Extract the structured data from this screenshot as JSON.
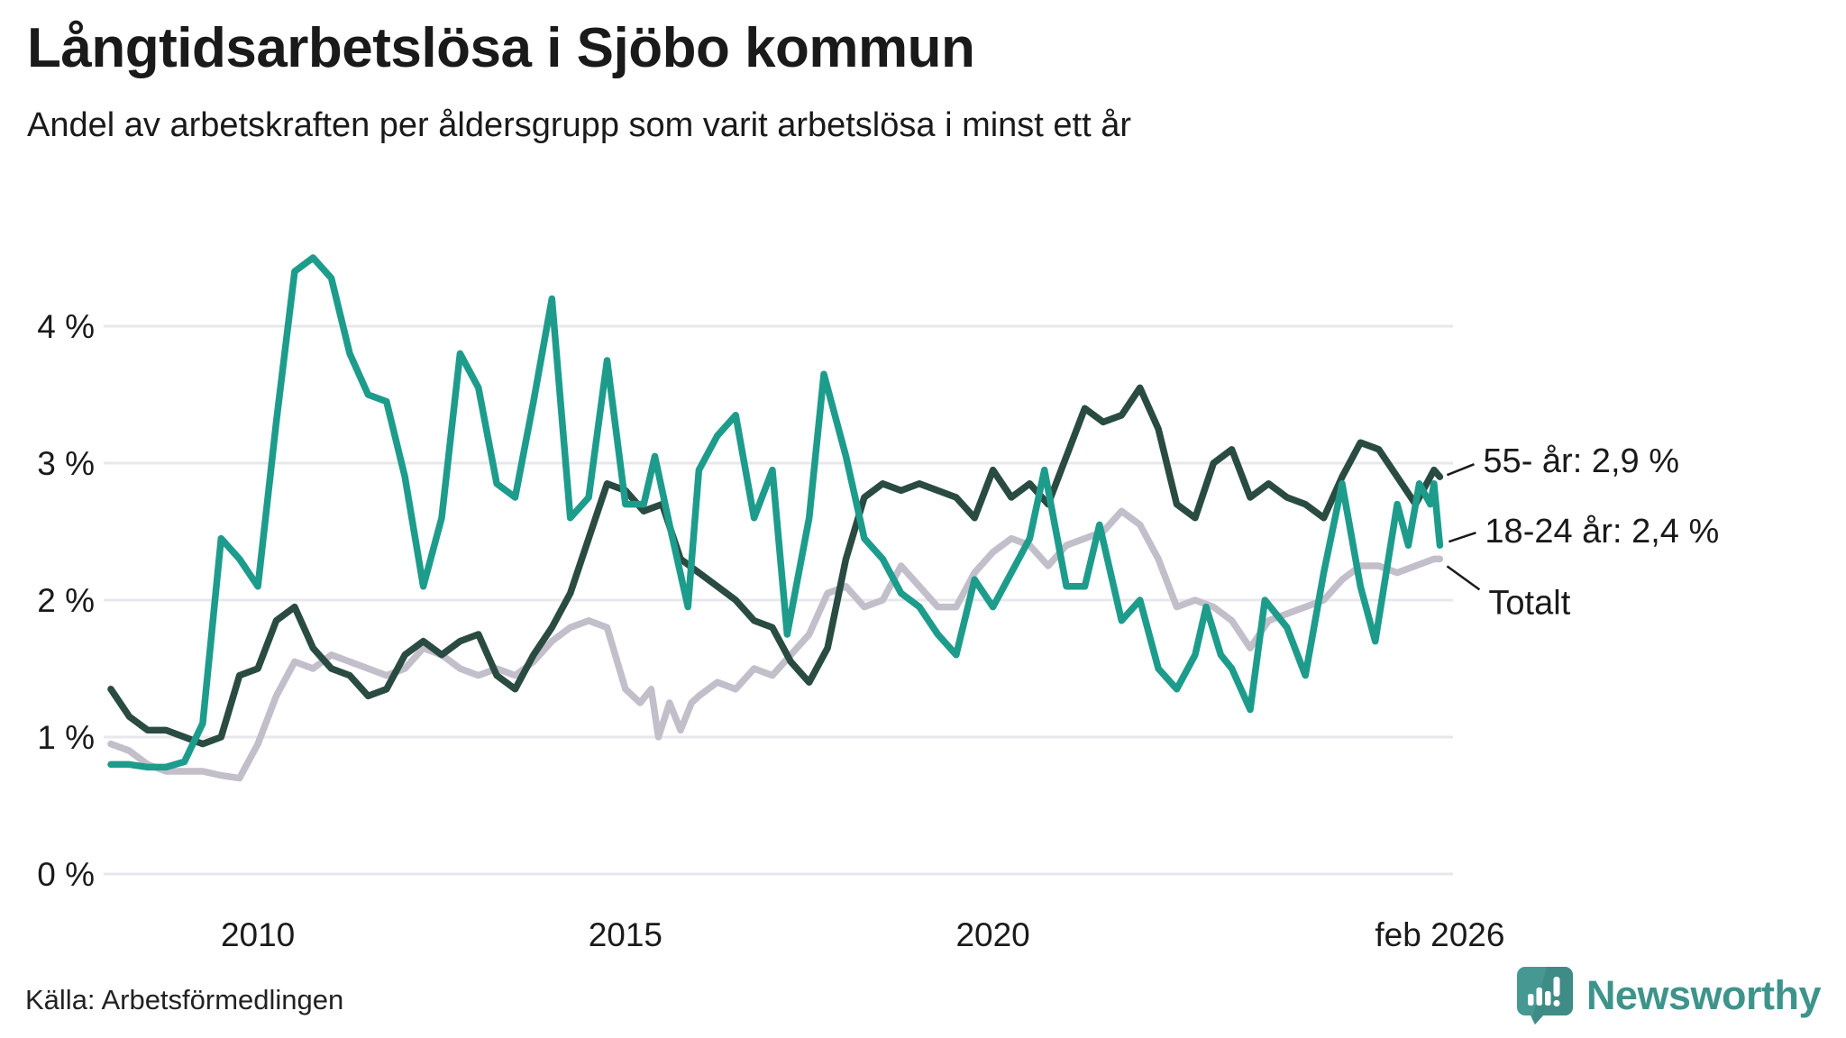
{
  "header": {
    "title": "Långtidsarbetslösa i Sjöbo kommun",
    "subtitle": "Andel av arbetskraften per åldersgrupp som varit arbetslösa i minst ett år"
  },
  "footer": {
    "source": "Källa: Arbetsförmedlingen",
    "brand": "Newsworthy"
  },
  "colors": {
    "background": "#ffffff",
    "text": "#1a1a1a",
    "gridline": "#e8e7eb",
    "series_18_24": "#1d9c8c",
    "series_55": "#2a4b42",
    "series_total": "#c2bfca",
    "brand_teal": "#3e948b",
    "brand_icon": "#459992",
    "brand_icon_dark": "#2e7a72"
  },
  "chart_data": {
    "type": "line",
    "title": "Långtidsarbetslösa i Sjöbo kommun",
    "subtitle": "Andel av arbetskraften per åldersgrupp som varit arbetslösa i minst ett år",
    "unit": "%",
    "grid": "horizontal",
    "legend_position": "end-of-line-labels",
    "x_axis": {
      "range": [
        2008.0,
        2026.17
      ],
      "ticks": [
        {
          "t": 2010,
          "label": "2010"
        },
        {
          "t": 2015,
          "label": "2015"
        },
        {
          "t": 2020,
          "label": "2020"
        },
        {
          "t": 2026.08,
          "label": "feb 2026"
        }
      ]
    },
    "y_axis": {
      "range": [
        0,
        4.6
      ],
      "ticks": [
        {
          "v": 0,
          "label": "0 %"
        },
        {
          "v": 1,
          "label": "1 %"
        },
        {
          "v": 2,
          "label": "2 %"
        },
        {
          "v": 3,
          "label": "3 %"
        },
        {
          "v": 4,
          "label": "4 %"
        }
      ]
    },
    "annotations": [
      {
        "text": "55- år: 2,9 %",
        "series": "55- år"
      },
      {
        "text": "18-24 år: 2,4 %",
        "series": "18-24 år"
      },
      {
        "text": "Totalt",
        "series": "Totalt"
      }
    ],
    "series": [
      {
        "name": "Totalt",
        "color": "#c2bfca",
        "end_value": 2.3,
        "points": [
          [
            2008.0,
            0.95
          ],
          [
            2008.25,
            0.9
          ],
          [
            2008.5,
            0.8
          ],
          [
            2008.75,
            0.75
          ],
          [
            2009.0,
            0.75
          ],
          [
            2009.25,
            0.75
          ],
          [
            2009.5,
            0.72
          ],
          [
            2009.75,
            0.7
          ],
          [
            2010.0,
            0.95
          ],
          [
            2010.25,
            1.3
          ],
          [
            2010.5,
            1.55
          ],
          [
            2010.75,
            1.5
          ],
          [
            2011.0,
            1.6
          ],
          [
            2011.25,
            1.55
          ],
          [
            2011.5,
            1.5
          ],
          [
            2011.75,
            1.45
          ],
          [
            2012.0,
            1.5
          ],
          [
            2012.25,
            1.65
          ],
          [
            2012.5,
            1.6
          ],
          [
            2012.75,
            1.5
          ],
          [
            2013.0,
            1.45
          ],
          [
            2013.25,
            1.5
          ],
          [
            2013.5,
            1.45
          ],
          [
            2013.75,
            1.55
          ],
          [
            2014.0,
            1.7
          ],
          [
            2014.25,
            1.8
          ],
          [
            2014.5,
            1.85
          ],
          [
            2014.75,
            1.8
          ],
          [
            2015.0,
            1.35
          ],
          [
            2015.2,
            1.25
          ],
          [
            2015.35,
            1.35
          ],
          [
            2015.45,
            1.0
          ],
          [
            2015.6,
            1.25
          ],
          [
            2015.75,
            1.05
          ],
          [
            2015.9,
            1.25
          ],
          [
            2016.0,
            1.3
          ],
          [
            2016.25,
            1.4
          ],
          [
            2016.5,
            1.35
          ],
          [
            2016.75,
            1.5
          ],
          [
            2017.0,
            1.45
          ],
          [
            2017.25,
            1.6
          ],
          [
            2017.5,
            1.75
          ],
          [
            2017.75,
            2.05
          ],
          [
            2018.0,
            2.1
          ],
          [
            2018.25,
            1.95
          ],
          [
            2018.5,
            2.0
          ],
          [
            2018.75,
            2.25
          ],
          [
            2019.0,
            2.1
          ],
          [
            2019.25,
            1.95
          ],
          [
            2019.5,
            1.95
          ],
          [
            2019.75,
            2.2
          ],
          [
            2020.0,
            2.35
          ],
          [
            2020.25,
            2.45
          ],
          [
            2020.5,
            2.4
          ],
          [
            2020.75,
            2.25
          ],
          [
            2021.0,
            2.4
          ],
          [
            2021.25,
            2.45
          ],
          [
            2021.5,
            2.5
          ],
          [
            2021.75,
            2.65
          ],
          [
            2022.0,
            2.55
          ],
          [
            2022.25,
            2.3
          ],
          [
            2022.5,
            1.95
          ],
          [
            2022.75,
            2.0
          ],
          [
            2023.0,
            1.95
          ],
          [
            2023.25,
            1.85
          ],
          [
            2023.5,
            1.65
          ],
          [
            2023.75,
            1.85
          ],
          [
            2024.0,
            1.9
          ],
          [
            2024.25,
            1.95
          ],
          [
            2024.5,
            2.0
          ],
          [
            2024.75,
            2.15
          ],
          [
            2025.0,
            2.25
          ],
          [
            2025.25,
            2.25
          ],
          [
            2025.5,
            2.2
          ],
          [
            2025.75,
            2.25
          ],
          [
            2026.0,
            2.3
          ],
          [
            2026.08,
            2.3
          ]
        ]
      },
      {
        "name": "55- år",
        "color": "#2a4b42",
        "end_value": 2.9,
        "points": [
          [
            2008.0,
            1.35
          ],
          [
            2008.25,
            1.15
          ],
          [
            2008.5,
            1.05
          ],
          [
            2008.75,
            1.05
          ],
          [
            2009.0,
            1.0
          ],
          [
            2009.25,
            0.95
          ],
          [
            2009.5,
            1.0
          ],
          [
            2009.75,
            1.45
          ],
          [
            2010.0,
            1.5
          ],
          [
            2010.25,
            1.85
          ],
          [
            2010.5,
            1.95
          ],
          [
            2010.75,
            1.65
          ],
          [
            2011.0,
            1.5
          ],
          [
            2011.25,
            1.45
          ],
          [
            2011.5,
            1.3
          ],
          [
            2011.75,
            1.35
          ],
          [
            2012.0,
            1.6
          ],
          [
            2012.25,
            1.7
          ],
          [
            2012.5,
            1.6
          ],
          [
            2012.75,
            1.7
          ],
          [
            2013.0,
            1.75
          ],
          [
            2013.25,
            1.45
          ],
          [
            2013.5,
            1.35
          ],
          [
            2013.75,
            1.6
          ],
          [
            2014.0,
            1.8
          ],
          [
            2014.25,
            2.05
          ],
          [
            2014.5,
            2.45
          ],
          [
            2014.75,
            2.85
          ],
          [
            2015.0,
            2.8
          ],
          [
            2015.25,
            2.65
          ],
          [
            2015.5,
            2.7
          ],
          [
            2015.75,
            2.3
          ],
          [
            2016.0,
            2.2
          ],
          [
            2016.25,
            2.1
          ],
          [
            2016.5,
            2.0
          ],
          [
            2016.75,
            1.85
          ],
          [
            2017.0,
            1.8
          ],
          [
            2017.25,
            1.55
          ],
          [
            2017.5,
            1.4
          ],
          [
            2017.75,
            1.65
          ],
          [
            2018.0,
            2.3
          ],
          [
            2018.25,
            2.75
          ],
          [
            2018.5,
            2.85
          ],
          [
            2018.75,
            2.8
          ],
          [
            2019.0,
            2.85
          ],
          [
            2019.25,
            2.8
          ],
          [
            2019.5,
            2.75
          ],
          [
            2019.75,
            2.6
          ],
          [
            2020.0,
            2.95
          ],
          [
            2020.25,
            2.75
          ],
          [
            2020.5,
            2.85
          ],
          [
            2020.75,
            2.7
          ],
          [
            2021.0,
            3.05
          ],
          [
            2021.25,
            3.4
          ],
          [
            2021.5,
            3.3
          ],
          [
            2021.75,
            3.35
          ],
          [
            2022.0,
            3.55
          ],
          [
            2022.25,
            3.25
          ],
          [
            2022.5,
            2.7
          ],
          [
            2022.75,
            2.6
          ],
          [
            2023.0,
            3.0
          ],
          [
            2023.25,
            3.1
          ],
          [
            2023.5,
            2.75
          ],
          [
            2023.75,
            2.85
          ],
          [
            2024.0,
            2.75
          ],
          [
            2024.25,
            2.7
          ],
          [
            2024.5,
            2.6
          ],
          [
            2024.75,
            2.9
          ],
          [
            2025.0,
            3.15
          ],
          [
            2025.25,
            3.1
          ],
          [
            2025.5,
            2.9
          ],
          [
            2025.75,
            2.7
          ],
          [
            2026.0,
            2.95
          ],
          [
            2026.08,
            2.9
          ]
        ]
      },
      {
        "name": "18-24 år",
        "color": "#1d9c8c",
        "end_value": 2.4,
        "points": [
          [
            2008.0,
            0.8
          ],
          [
            2008.25,
            0.8
          ],
          [
            2008.5,
            0.78
          ],
          [
            2008.75,
            0.78
          ],
          [
            2009.0,
            0.82
          ],
          [
            2009.25,
            1.1
          ],
          [
            2009.5,
            2.45
          ],
          [
            2009.75,
            2.3
          ],
          [
            2010.0,
            2.1
          ],
          [
            2010.25,
            3.3
          ],
          [
            2010.5,
            4.4
          ],
          [
            2010.75,
            4.5
          ],
          [
            2011.0,
            4.35
          ],
          [
            2011.25,
            3.8
          ],
          [
            2011.5,
            3.5
          ],
          [
            2011.75,
            3.45
          ],
          [
            2012.0,
            2.9
          ],
          [
            2012.25,
            2.1
          ],
          [
            2012.5,
            2.6
          ],
          [
            2012.75,
            3.8
          ],
          [
            2013.0,
            3.55
          ],
          [
            2013.25,
            2.85
          ],
          [
            2013.5,
            2.75
          ],
          [
            2013.75,
            3.45
          ],
          [
            2014.0,
            4.2
          ],
          [
            2014.25,
            2.6
          ],
          [
            2014.5,
            2.75
          ],
          [
            2014.75,
            3.75
          ],
          [
            2015.0,
            2.7
          ],
          [
            2015.25,
            2.7
          ],
          [
            2015.4,
            3.05
          ],
          [
            2015.6,
            2.55
          ],
          [
            2015.85,
            1.95
          ],
          [
            2016.0,
            2.95
          ],
          [
            2016.25,
            3.2
          ],
          [
            2016.5,
            3.35
          ],
          [
            2016.75,
            2.6
          ],
          [
            2017.0,
            2.95
          ],
          [
            2017.2,
            1.75
          ],
          [
            2017.5,
            2.6
          ],
          [
            2017.7,
            3.65
          ],
          [
            2018.0,
            3.05
          ],
          [
            2018.25,
            2.45
          ],
          [
            2018.5,
            2.3
          ],
          [
            2018.75,
            2.05
          ],
          [
            2019.0,
            1.95
          ],
          [
            2019.25,
            1.75
          ],
          [
            2019.5,
            1.6
          ],
          [
            2019.75,
            2.15
          ],
          [
            2020.0,
            1.95
          ],
          [
            2020.25,
            2.2
          ],
          [
            2020.5,
            2.45
          ],
          [
            2020.7,
            2.95
          ],
          [
            2021.0,
            2.1
          ],
          [
            2021.25,
            2.1
          ],
          [
            2021.45,
            2.55
          ],
          [
            2021.75,
            1.85
          ],
          [
            2022.0,
            2.0
          ],
          [
            2022.25,
            1.5
          ],
          [
            2022.5,
            1.35
          ],
          [
            2022.75,
            1.6
          ],
          [
            2022.9,
            1.95
          ],
          [
            2023.1,
            1.6
          ],
          [
            2023.25,
            1.5
          ],
          [
            2023.5,
            1.2
          ],
          [
            2023.7,
            2.0
          ],
          [
            2024.0,
            1.8
          ],
          [
            2024.25,
            1.45
          ],
          [
            2024.5,
            2.2
          ],
          [
            2024.75,
            2.85
          ],
          [
            2025.0,
            2.1
          ],
          [
            2025.2,
            1.7
          ],
          [
            2025.5,
            2.7
          ],
          [
            2025.65,
            2.4
          ],
          [
            2025.8,
            2.85
          ],
          [
            2025.95,
            2.7
          ],
          [
            2026.0,
            2.85
          ],
          [
            2026.08,
            2.4
          ]
        ]
      }
    ]
  }
}
